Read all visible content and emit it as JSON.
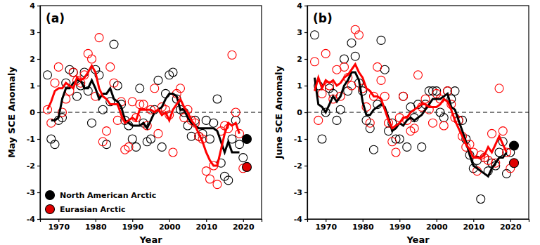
{
  "chart_data": [
    {
      "type": "scatter",
      "title": "(a)",
      "x_label": "Year",
      "y_label": "May SCE Anomaly",
      "x": [
        1967,
        1968,
        1969,
        1970,
        1971,
        1972,
        1973,
        1974,
        1975,
        1976,
        1977,
        1978,
        1979,
        1980,
        1981,
        1982,
        1983,
        1984,
        1985,
        1986,
        1987,
        1988,
        1989,
        1990,
        1991,
        1992,
        1993,
        1994,
        1995,
        1996,
        1997,
        1998,
        1999,
        2000,
        2001,
        2002,
        2003,
        2004,
        2005,
        2006,
        2007,
        2008,
        2009,
        2010,
        2011,
        2012,
        2013,
        2014,
        2015,
        2016,
        2017,
        2018,
        2019,
        2020,
        2021
      ],
      "xlim": [
        1965,
        2025
      ],
      "xticks": [
        1970,
        1980,
        1990,
        2000,
        2010,
        2020
      ],
      "ylim": [
        -4,
        4
      ],
      "yticks": [
        -4,
        -3,
        -2,
        -1,
        0,
        1,
        2,
        3,
        4
      ],
      "hline": 0,
      "legend": "lower left",
      "series": [
        {
          "type": "scatter",
          "marker": "open",
          "color": "#000000",
          "values": [
            1.4,
            -1.0,
            -1.2,
            -0.3,
            -0.2,
            1.1,
            1.6,
            1.5,
            0.6,
            1.0,
            1.5,
            0.8,
            -0.4,
            1.6,
            1.4,
            0.1,
            -1.2,
            0.4,
            2.55,
            1.0,
            0.3,
            -0.3,
            -0.5,
            -1.0,
            -1.3,
            0.9,
            -0.4,
            -1.1,
            -1.0,
            0.1,
            1.2,
            -1.3,
            0.7,
            1.4,
            1.5,
            0.5,
            0.1,
            0.0,
            -0.5,
            -0.9,
            -0.3,
            -0.9,
            -0.8,
            -0.3,
            -1.0,
            -0.4,
            0.5,
            -1.9,
            -2.4,
            -2.55,
            -1.0,
            -0.3,
            -1.2,
            -1.7,
            null
          ]
        },
        {
          "type": "scatter",
          "marker": "open",
          "color": "#ff0000",
          "values": [
            0.1,
            -0.4,
            1.1,
            1.7,
            0.0,
            0.5,
            0.8,
            1.5,
            1.2,
            1.1,
            1.4,
            2.2,
            2.0,
            0.6,
            2.8,
            -1.1,
            -0.7,
            1.7,
            1.1,
            -0.3,
            0.4,
            -1.4,
            -1.3,
            0.4,
            -0.2,
            0.3,
            0.3,
            -0.5,
            0.1,
            0.9,
            -0.8,
            0.2,
            0.1,
            -0.1,
            -1.5,
            0.7,
            0.9,
            -0.2,
            0.1,
            -0.3,
            -0.4,
            -0.9,
            -1.0,
            -2.2,
            -2.5,
            -2.0,
            -2.7,
            -0.7,
            -0.5,
            -0.6,
            2.15,
            0.0,
            -0.8,
            -2.1,
            null
          ]
        },
        {
          "type": "line",
          "line_style": "solid",
          "color": "#000000",
          "values": [
            null,
            -0.3,
            -0.3,
            -0.2,
            0.5,
            0.9,
            0.9,
            1.1,
            1.2,
            1.2,
            0.9,
            0.9,
            1.2,
            0.9,
            0.5,
            0.7,
            0.7,
            0.9,
            0.5,
            0.4,
            0.2,
            -0.3,
            -0.4,
            -0.5,
            -0.5,
            -0.5,
            -0.4,
            -0.6,
            -0.3,
            0.0,
            0.1,
            0.2,
            0.5,
            0.7,
            0.7,
            0.6,
            0.1,
            0.1,
            -0.2,
            -0.4,
            -0.5,
            -0.6,
            -0.6,
            -0.6,
            -0.6,
            -0.6,
            -0.7,
            -1.1,
            -1.5,
            -1.1,
            -1.5,
            -1.5,
            -1.5,
            null,
            null
          ]
        },
        {
          "type": "line",
          "line_style": "solid",
          "color": "#ff0000",
          "values": [
            0.1,
            0.4,
            0.8,
            0.9,
            0.9,
            1.1,
            1.0,
            0.9,
            1.3,
            1.2,
            1.3,
            1.5,
            1.75,
            1.5,
            0.9,
            0.6,
            0.5,
            0.3,
            0.3,
            0.3,
            -0.1,
            -0.4,
            -0.3,
            -0.2,
            -0.3,
            0.1,
            0.1,
            0.1,
            0.1,
            0.0,
            0.1,
            -0.1,
            0.0,
            -0.3,
            0.1,
            0.3,
            0.5,
            0.2,
            0.0,
            -0.3,
            -0.5,
            -0.8,
            -1.1,
            -1.5,
            -1.8,
            -2.0,
            -2.0,
            -1.4,
            -0.8,
            -0.4,
            -0.5,
            -0.4,
            -0.8,
            null,
            null
          ]
        },
        {
          "name": "North American Arctic",
          "type": "scatter",
          "marker": "filled",
          "color": "#000000",
          "x": [
            2021
          ],
          "values": [
            -1.0
          ]
        },
        {
          "name": "Eurasian Arctic",
          "type": "scatter",
          "marker": "filled",
          "color": "#e00000",
          "x": [
            2021
          ],
          "values": [
            -2.05
          ]
        }
      ]
    },
    {
      "type": "scatter",
      "title": "(b)",
      "x_label": "Year",
      "y_label": "June SCE Anomaly",
      "x": [
        1967,
        1968,
        1969,
        1970,
        1971,
        1972,
        1973,
        1974,
        1975,
        1976,
        1977,
        1978,
        1979,
        1980,
        1981,
        1982,
        1983,
        1984,
        1985,
        1986,
        1987,
        1988,
        1989,
        1990,
        1991,
        1992,
        1993,
        1994,
        1995,
        1996,
        1997,
        1998,
        1999,
        2000,
        2001,
        2002,
        2003,
        2004,
        2005,
        2006,
        2007,
        2008,
        2009,
        2010,
        2011,
        2012,
        2013,
        2014,
        2015,
        2016,
        2017,
        2018,
        2019,
        2020,
        2021
      ],
      "xlim": [
        1965,
        2025
      ],
      "xticks": [
        1970,
        1980,
        1990,
        2000,
        2010,
        2020
      ],
      "ylim": [
        -4,
        4
      ],
      "yticks": [
        -4,
        -3,
        -2,
        -1,
        0,
        1,
        2,
        3,
        4
      ],
      "hline": 0,
      "series": [
        {
          "type": "scatter",
          "marker": "open",
          "color": "#000000",
          "values": [
            2.9,
            1.0,
            -1.0,
            0.0,
            0.9,
            0.7,
            -0.3,
            0.1,
            2.0,
            0.8,
            2.6,
            2.1,
            1.1,
            0.8,
            -0.3,
            -0.6,
            -1.4,
            0.3,
            2.7,
            1.6,
            -0.7,
            -0.4,
            -1.0,
            -1.0,
            0.6,
            -1.3,
            0.2,
            -0.2,
            0.3,
            -1.3,
            0.3,
            0.8,
            0.8,
            0.8,
            0.0,
            -0.2,
            0.8,
            0.5,
            0.8,
            -0.3,
            -0.3,
            -1.0,
            -1.6,
            -2.1,
            -1.8,
            -3.25,
            -1.7,
            -2.2,
            -1.9,
            -2.0,
            -1.5,
            -1.1,
            -2.3,
            -1.5,
            null
          ]
        },
        {
          "type": "scatter",
          "marker": "open",
          "color": "#ff0000",
          "values": [
            1.9,
            -0.3,
            0.7,
            2.2,
            1.0,
            0.5,
            1.6,
            0.6,
            1.7,
            1.3,
            1.0,
            3.1,
            2.9,
            0.9,
            0.2,
            -0.4,
            0.6,
            1.7,
            1.2,
            0.6,
            -0.4,
            -1.1,
            -1.5,
            -0.2,
            0.6,
            -0.3,
            -0.7,
            -0.6,
            1.4,
            0.2,
            0.5,
            0.1,
            -0.4,
            0.7,
            0.5,
            -0.5,
            0.8,
            0.3,
            -0.2,
            -0.3,
            -0.9,
            -1.3,
            -1.2,
            -1.5,
            -2.2,
            -1.6,
            -1.7,
            -1.8,
            -0.8,
            -1.9,
            0.9,
            -0.7,
            -1.5,
            -2.1,
            null
          ]
        },
        {
          "type": "line",
          "line_style": "solid",
          "color": "#000000",
          "values": [
            1.3,
            0.3,
            0.2,
            0.0,
            0.3,
            0.6,
            0.4,
            0.6,
            1.0,
            1.2,
            1.5,
            1.5,
            1.2,
            0.4,
            -0.1,
            -0.1,
            0.1,
            0.2,
            0.3,
            0.2,
            -0.2,
            -0.7,
            -0.6,
            -0.4,
            -0.5,
            -0.3,
            -0.2,
            -0.3,
            -0.2,
            -0.1,
            0.1,
            0.3,
            0.5,
            0.5,
            0.5,
            0.6,
            0.7,
            0.2,
            0.1,
            -0.3,
            -0.7,
            -1.1,
            -1.6,
            -2.0,
            -2.1,
            -2.2,
            -2.3,
            -2.4,
            -2.1,
            -1.9,
            -1.7,
            -1.7,
            -1.5,
            null,
            null
          ]
        },
        {
          "type": "line",
          "line_style": "solid",
          "color": "#ff0000",
          "values": [
            0.8,
            1.3,
            0.9,
            1.2,
            1.1,
            1.2,
            1.0,
            1.1,
            1.3,
            1.4,
            1.6,
            1.8,
            1.5,
            1.3,
            0.9,
            0.8,
            0.6,
            0.6,
            0.5,
            0.1,
            -0.3,
            -0.6,
            -0.5,
            -0.4,
            -0.2,
            -0.2,
            0.0,
            0.1,
            0.2,
            0.3,
            0.3,
            0.2,
            0.2,
            0.2,
            0.3,
            0.5,
            0.4,
            0.1,
            -0.3,
            -0.6,
            -0.9,
            -1.2,
            -1.4,
            -1.7,
            -1.7,
            -1.7,
            -1.6,
            -1.3,
            -1.5,
            -1.2,
            -0.9,
            -1.2,
            -1.5,
            null,
            null
          ]
        },
        {
          "type": "scatter",
          "marker": "filled",
          "color": "#000000",
          "x": [
            2021
          ],
          "values": [
            -1.25
          ]
        },
        {
          "type": "scatter",
          "marker": "filled",
          "color": "#e00000",
          "x": [
            2021
          ],
          "values": [
            -1.9
          ]
        }
      ]
    }
  ]
}
